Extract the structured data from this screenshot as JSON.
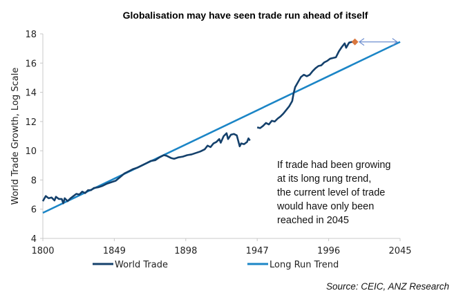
{
  "chart_data": {
    "type": "line",
    "title": "Globalisation may have seen trade run ahead of itself",
    "xlabel": "",
    "ylabel": "World Trade Growth, Log Scale",
    "xlim": [
      1800,
      2045
    ],
    "ylim": [
      4,
      18
    ],
    "x_ticks": [
      "1800",
      "1849",
      "1898",
      "1947",
      "1996",
      "2045"
    ],
    "y_ticks": [
      "4",
      "6",
      "8",
      "10",
      "12",
      "14",
      "16",
      "18"
    ],
    "grid": false,
    "legend_position": "bottom",
    "series": [
      {
        "name": "World Trade",
        "color": "#14406b",
        "segments": [
          [
            [
              1800,
              6.55
            ],
            [
              1802,
              6.9
            ],
            [
              1804,
              6.75
            ],
            [
              1806,
              6.8
            ],
            [
              1808,
              6.6
            ],
            [
              1809,
              6.85
            ],
            [
              1811,
              6.7
            ],
            [
              1813,
              6.7
            ],
            [
              1814,
              6.4
            ],
            [
              1815,
              6.75
            ],
            [
              1817,
              6.55
            ],
            [
              1819,
              6.75
            ],
            [
              1821,
              6.9
            ],
            [
              1823,
              7.05
            ],
            [
              1825,
              7.0
            ],
            [
              1827,
              7.2
            ],
            [
              1829,
              7.1
            ],
            [
              1831,
              7.3
            ],
            [
              1833,
              7.3
            ],
            [
              1835,
              7.45
            ],
            [
              1838,
              7.5
            ],
            [
              1841,
              7.6
            ],
            [
              1844,
              7.75
            ],
            [
              1847,
              7.85
            ],
            [
              1850,
              7.95
            ],
            [
              1853,
              8.2
            ],
            [
              1856,
              8.45
            ],
            [
              1859,
              8.6
            ],
            [
              1862,
              8.75
            ],
            [
              1865,
              8.85
            ],
            [
              1868,
              9.0
            ],
            [
              1871,
              9.15
            ],
            [
              1874,
              9.3
            ],
            [
              1877,
              9.35
            ],
            [
              1880,
              9.55
            ],
            [
              1883,
              9.7
            ],
            [
              1885,
              9.65
            ],
            [
              1888,
              9.5
            ],
            [
              1890,
              9.45
            ],
            [
              1893,
              9.55
            ],
            [
              1896,
              9.6
            ],
            [
              1899,
              9.7
            ],
            [
              1902,
              9.75
            ],
            [
              1905,
              9.85
            ],
            [
              1908,
              9.95
            ],
            [
              1911,
              10.1
            ],
            [
              1913,
              10.35
            ],
            [
              1915,
              10.25
            ],
            [
              1917,
              10.5
            ],
            [
              1919,
              10.6
            ],
            [
              1921,
              10.8
            ],
            [
              1922,
              10.55
            ],
            [
              1924,
              11.0
            ],
            [
              1926,
              11.2
            ],
            [
              1927,
              10.8
            ],
            [
              1929,
              11.1
            ],
            [
              1931,
              11.15
            ],
            [
              1933,
              11.05
            ],
            [
              1935,
              10.3
            ],
            [
              1936,
              10.5
            ],
            [
              1938,
              10.45
            ],
            [
              1940,
              10.6
            ],
            [
              1941,
              10.85
            ],
            [
              1942,
              10.7
            ]
          ],
          [
            [
              1947,
              11.6
            ],
            [
              1949,
              11.55
            ],
            [
              1951,
              11.7
            ],
            [
              1953,
              11.9
            ],
            [
              1955,
              11.8
            ],
            [
              1957,
              12.05
            ],
            [
              1959,
              12.0
            ],
            [
              1961,
              12.2
            ],
            [
              1963,
              12.35
            ],
            [
              1965,
              12.55
            ],
            [
              1967,
              12.8
            ],
            [
              1969,
              13.05
            ],
            [
              1971,
              13.4
            ],
            [
              1972,
              13.95
            ],
            [
              1973,
              14.35
            ],
            [
              1975,
              14.7
            ],
            [
              1977,
              15.05
            ],
            [
              1979,
              15.2
            ],
            [
              1981,
              15.1
            ],
            [
              1983,
              15.2
            ],
            [
              1985,
              15.45
            ],
            [
              1987,
              15.65
            ],
            [
              1989,
              15.8
            ],
            [
              1991,
              15.85
            ],
            [
              1993,
              16.05
            ],
            [
              1995,
              16.15
            ],
            [
              1997,
              16.3
            ],
            [
              1999,
              16.35
            ],
            [
              2001,
              16.4
            ],
            [
              2003,
              16.8
            ],
            [
              2005,
              17.1
            ],
            [
              2007,
              17.35
            ],
            [
              2008,
              17.05
            ],
            [
              2010,
              17.4
            ],
            [
              2012,
              17.45
            ],
            [
              2014,
              17.4
            ]
          ]
        ]
      },
      {
        "name": "Long Run Trend",
        "color": "#1b85c6",
        "points": [
          [
            1800,
            5.75
          ],
          [
            2045,
            17.45
          ]
        ]
      }
    ],
    "markers": [
      {
        "name": "current-level",
        "x": 2014,
        "y": 17.45,
        "shape": "diamond",
        "color": "#d9773f"
      }
    ],
    "arrows": [
      {
        "name": "time-gap-arrow",
        "from": [
          2017,
          17.45
        ],
        "to": [
          2043,
          17.45
        ],
        "double_headed": true,
        "color": "#6f8fd0"
      }
    ],
    "annotations": [
      "If trade had been growing",
      "at its long rung trend,",
      "the current level of trade",
      "would have only been",
      "reached in 2045"
    ],
    "source": "Source:  CEIC, ANZ Research"
  }
}
